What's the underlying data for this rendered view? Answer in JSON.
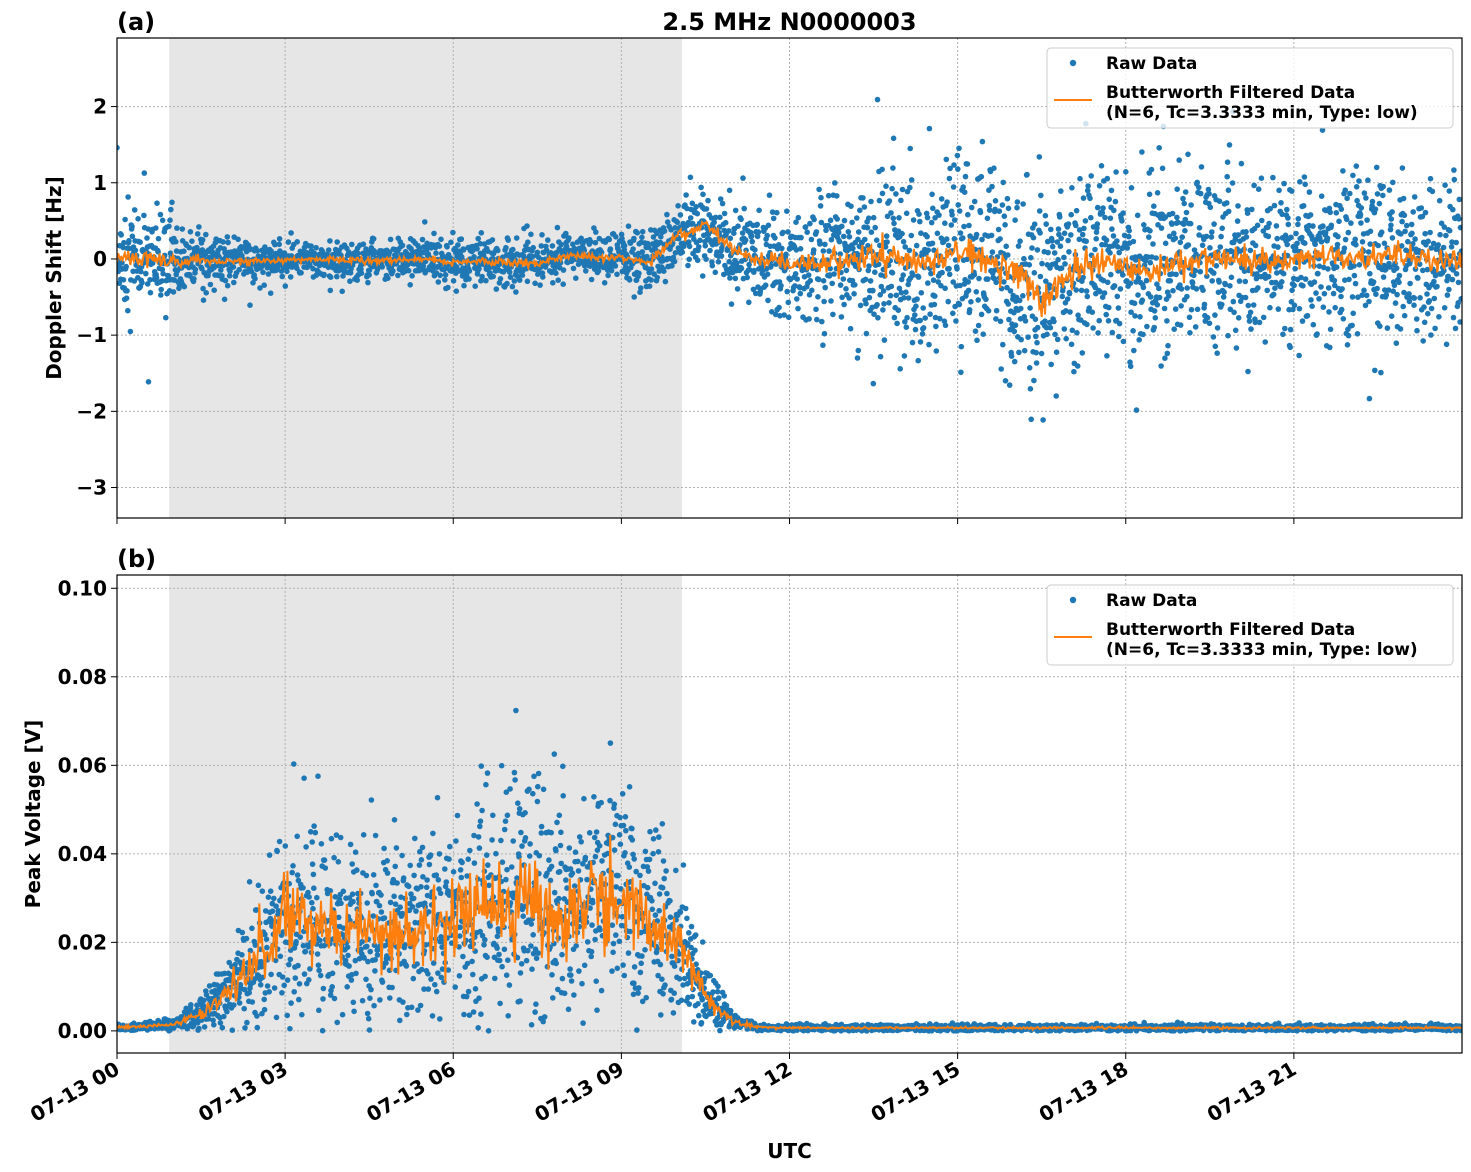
{
  "chart_data": [
    {
      "type": "scatter",
      "panel_label": "(a)",
      "title": "2.5 MHz N0000003",
      "xlabel": "",
      "ylabel": "Doppler Shift [Hz]",
      "xlim_hours_utc": [
        0,
        24
      ],
      "ylim": [
        -3.4,
        2.9
      ],
      "yticks": [
        2,
        1,
        0,
        -1,
        -2,
        -3
      ],
      "ytick_labels": [
        "2",
        "1",
        "0",
        "−1",
        "−2",
        "−3"
      ],
      "grid": true,
      "legend_placement": "top-right",
      "shaded_span_hours_utc": [
        0.93,
        10.08
      ],
      "series": [
        {
          "name": "Raw Data",
          "style": "dots",
          "color": "#1f77b4",
          "spread": [
            0.5,
            0.45,
            0.35,
            0.25,
            0.18,
            0.18,
            0.16,
            0.15,
            0.17,
            0.17,
            0.17,
            0.2,
            0.2,
            0.2,
            0.2,
            0.18,
            0.18,
            0.18,
            0.2,
            0.25,
            0.3,
            0.3,
            0.35,
            0.4,
            0.5,
            0.55,
            0.65,
            0.75,
            0.8,
            0.8,
            0.8,
            0.8,
            0.85,
            0.95,
            0.85,
            0.8,
            0.75,
            0.75,
            0.75,
            0.75,
            0.75,
            0.75,
            0.75,
            0.75,
            0.75,
            0.72,
            0.72,
            0.7,
            0.7
          ]
        },
        {
          "name": "Butterworth Filtered Data",
          "name2": "(N=6, Tc=3.3333 min, Type: low)",
          "style": "line",
          "color": "#ff7f0e",
          "x_hours": "0 to 24 step 0.5",
          "values": [
            0,
            0,
            -0.05,
            -0.02,
            -0.03,
            -0.03,
            -0.02,
            0,
            -0.02,
            -0.02,
            -0.02,
            0,
            -0.05,
            -0.03,
            -0.05,
            -0.05,
            0.05,
            0.02,
            0.02,
            -0.05,
            0.3,
            0.45,
            0.1,
            0,
            -0.05,
            -0.05,
            0,
            0.05,
            0,
            -0.05,
            0.1,
            0,
            -0.1,
            -0.6,
            -0.2,
            0,
            -0.1,
            -0.2,
            0,
            0,
            0,
            -0.05,
            0,
            0.05,
            0,
            0.05,
            0.05,
            0,
            -0.05
          ]
        }
      ]
    },
    {
      "type": "scatter",
      "panel_label": "(b)",
      "xlabel": "UTC",
      "ylabel": "Peak Voltage [V]",
      "xlim_hours_utc": [
        0,
        24
      ],
      "ylim": [
        -0.005,
        0.103
      ],
      "yticks": [
        0,
        0.02,
        0.04,
        0.06,
        0.08,
        0.1
      ],
      "ytick_labels": [
        "0.00",
        "0.02",
        "0.04",
        "0.06",
        "0.08",
        "0.10"
      ],
      "grid": true,
      "legend_placement": "top-right",
      "shaded_span_hours_utc": [
        0.93,
        10.08
      ],
      "series": [
        {
          "name": "Raw Data",
          "style": "dots",
          "color": "#1f77b4"
        },
        {
          "name": "Butterworth Filtered Data",
          "name2": "(N=6, Tc=3.3333 min, Type: low)",
          "style": "line",
          "color": "#ff7f0e",
          "x_hours": "0 to 24 step 0.5",
          "values": [
            0.0008,
            0.001,
            0.0015,
            0.004,
            0.009,
            0.018,
            0.024,
            0.025,
            0.022,
            0.023,
            0.022,
            0.024,
            0.027,
            0.028,
            0.03,
            0.03,
            0.027,
            0.03,
            0.028,
            0.025,
            0.02,
            0.008,
            0.002,
            0.0008,
            0.0007,
            0.0007,
            0.0007,
            0.0007,
            0.0007,
            0.0007,
            0.0007,
            0.0007,
            0.0007,
            0.0007,
            0.0007,
            0.0007,
            0.0007,
            0.0007,
            0.0007,
            0.0007,
            0.0007,
            0.0007,
            0.0007,
            0.0007,
            0.0007,
            0.0007,
            0.0007,
            0.0007,
            0.0007
          ]
        }
      ]
    }
  ],
  "xticks_hours": [
    0,
    3,
    6,
    9,
    12,
    15,
    18,
    21
  ],
  "xtick_labels": [
    "07-13 00",
    "07-13 03",
    "07-13 06",
    "07-13 09",
    "07-13 12",
    "07-13 15",
    "07-13 18",
    "07-13 21"
  ]
}
